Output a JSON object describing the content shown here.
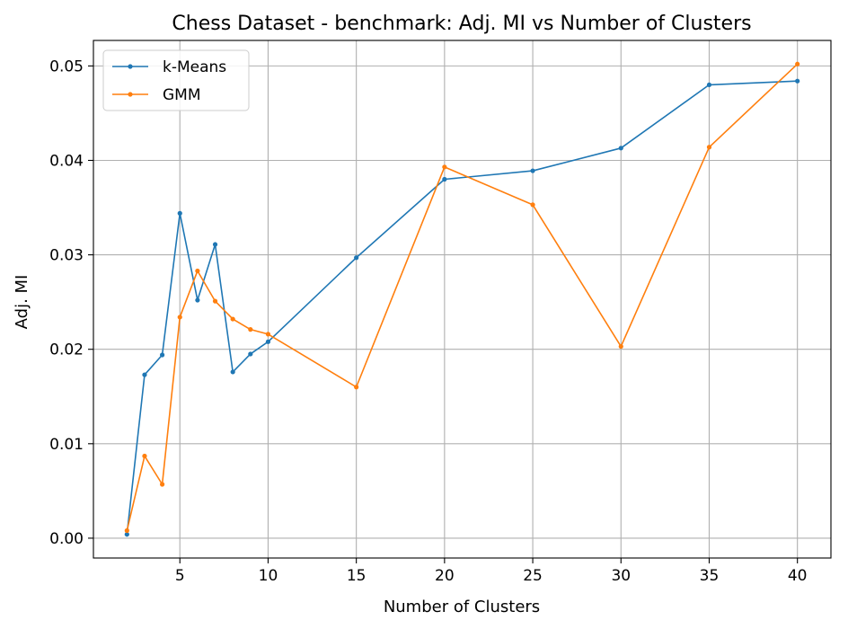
{
  "chart_data": {
    "type": "line",
    "title": "Chess Dataset - benchmark: Adj. MI vs Number of Clusters",
    "xlabel": "Number of Clusters",
    "ylabel": "Adj. MI",
    "x": [
      2,
      3,
      4,
      5,
      6,
      7,
      8,
      9,
      10,
      15,
      20,
      25,
      30,
      35,
      40
    ],
    "xlim": [
      0.1,
      41.9
    ],
    "ylim": [
      -0.0021,
      0.0527
    ],
    "x_ticks": [
      5,
      10,
      15,
      20,
      25,
      30,
      35,
      40
    ],
    "y_ticks": [
      0.0,
      0.01,
      0.02,
      0.03,
      0.04,
      0.05
    ],
    "x_tick_labels": [
      "5",
      "10",
      "15",
      "20",
      "25",
      "30",
      "35",
      "40"
    ],
    "y_tick_labels": [
      "0.00",
      "0.01",
      "0.02",
      "0.03",
      "0.04",
      "0.05"
    ],
    "grid": true,
    "legend_position": "top-left",
    "series": [
      {
        "name": "k-Means",
        "color": "#1f77b4",
        "values": [
          0.0004,
          0.0173,
          0.0194,
          0.0344,
          0.0252,
          0.0311,
          0.0176,
          0.0195,
          0.0208,
          0.0297,
          0.038,
          0.0389,
          0.0413,
          0.048,
          0.0484
        ]
      },
      {
        "name": "GMM",
        "color": "#ff7f0e",
        "values": [
          0.0008,
          0.0087,
          0.0057,
          0.0234,
          0.0283,
          0.0251,
          0.0232,
          0.0221,
          0.0216,
          0.016,
          0.0393,
          0.0353,
          0.0203,
          0.0414,
          0.0502
        ]
      }
    ]
  }
}
